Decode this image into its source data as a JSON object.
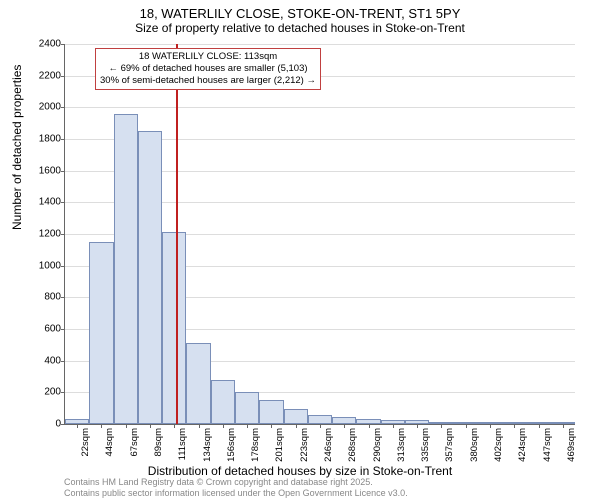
{
  "title": "18, WATERLILY CLOSE, STOKE-ON-TRENT, ST1 5PY",
  "subtitle": "Size of property relative to detached houses in Stoke-on-Trent",
  "ylabel": "Number of detached properties",
  "xlabel": "Distribution of detached houses by size in Stoke-on-Trent",
  "chart": {
    "type": "histogram",
    "ylim": [
      0,
      2400
    ],
    "ytick_step": 200,
    "bar_fill": "#d6e0f0",
    "bar_stroke": "#7a8fb8",
    "grid_color": "#dddddd",
    "axis_color": "#666666",
    "background": "#ffffff",
    "refline_x": 113,
    "refline_color": "#c02020",
    "x_start": 11,
    "bin_width": 22.4,
    "categories": [
      "22sqm",
      "44sqm",
      "67sqm",
      "89sqm",
      "111sqm",
      "134sqm",
      "156sqm",
      "178sqm",
      "201sqm",
      "223sqm",
      "246sqm",
      "268sqm",
      "290sqm",
      "313sqm",
      "335sqm",
      "357sqm",
      "380sqm",
      "402sqm",
      "424sqm",
      "447sqm",
      "469sqm"
    ],
    "values": [
      30,
      1150,
      1960,
      1850,
      1215,
      510,
      280,
      200,
      150,
      95,
      55,
      45,
      30,
      25,
      25,
      15,
      10,
      8,
      6,
      5,
      4
    ]
  },
  "annotation": {
    "box_border": "#c04040",
    "line1": "18 WATERLILY CLOSE: 113sqm",
    "line2": "← 69% of detached houses are smaller (5,103)",
    "line3": "30% of semi-detached houses are larger (2,212) →"
  },
  "attribution": {
    "line1": "Contains HM Land Registry data © Crown copyright and database right 2025.",
    "line2": "Contains public sector information licensed under the Open Government Licence v3.0."
  }
}
